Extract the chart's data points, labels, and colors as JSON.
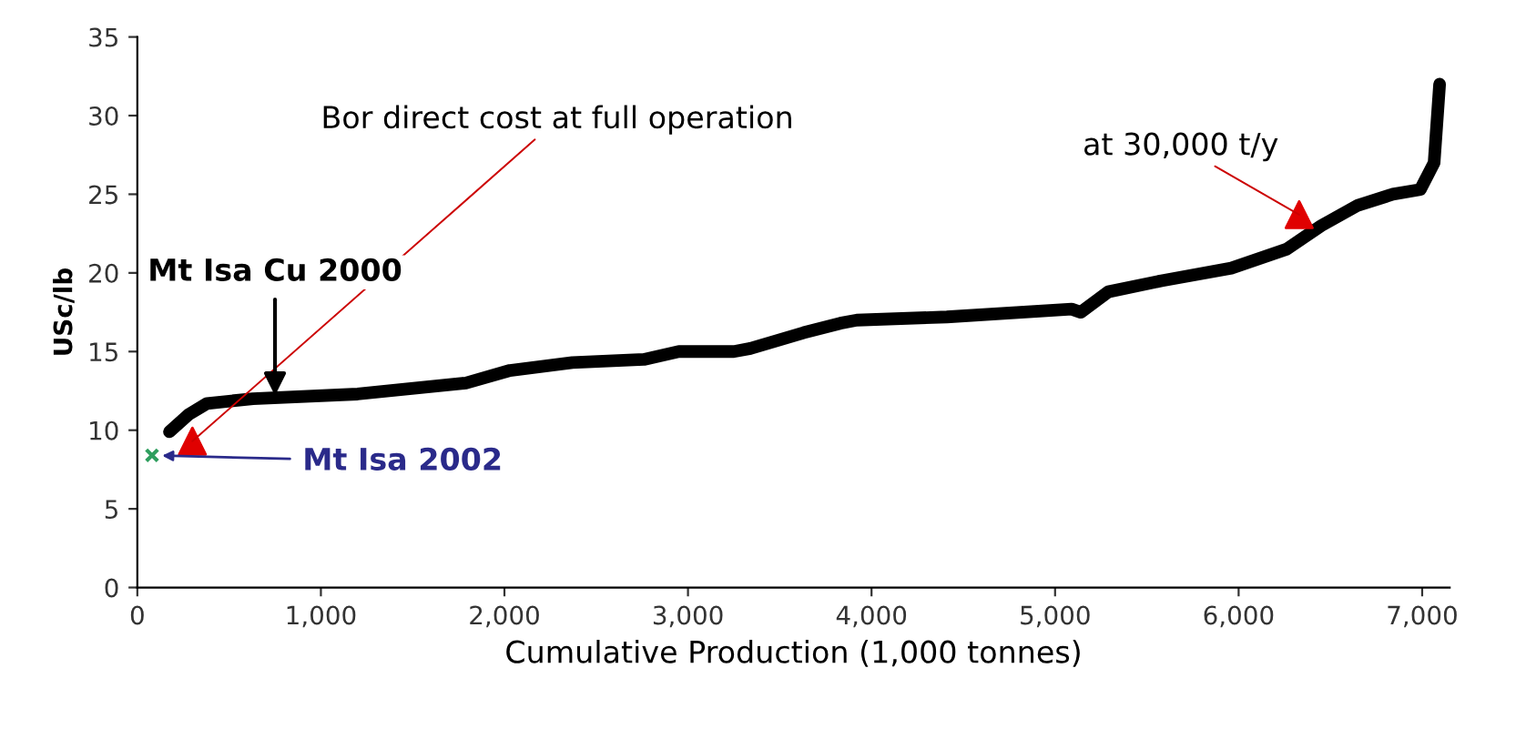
{
  "chart_data": {
    "type": "line",
    "xlabel": "Cumulative Production (1,000 tonnes)",
    "ylabel": "USc/lb",
    "xlim": [
      0,
      7150
    ],
    "ylim": [
      0,
      35
    ],
    "xticks": [
      0,
      {
        "value": 1000,
        "label": "1,000"
      },
      {
        "value": 2000,
        "label": "2,000"
      },
      {
        "value": 3000,
        "label": "3,000"
      },
      {
        "value": 4000,
        "label": "4,000"
      },
      {
        "value": 5000,
        "label": "5,000"
      },
      {
        "value": 6000,
        "label": "6,000"
      },
      {
        "value": 7000,
        "label": "7,000"
      }
    ],
    "yticks": [
      0,
      5,
      10,
      15,
      20,
      25,
      30,
      35
    ],
    "grid": false,
    "legend": false,
    "marker": "none",
    "line_style": "solid",
    "series": [
      {
        "color": "#000000",
        "x": [
          175,
          280,
          380,
          630,
          1200,
          1790,
          2030,
          2370,
          2760,
          2950,
          3250,
          3340,
          3630,
          3830,
          3920,
          4410,
          5090,
          5140,
          5290,
          5580,
          5960,
          6260,
          6450,
          6650,
          6840,
          6990,
          7065,
          7095
        ],
        "values": [
          9.9,
          11.0,
          11.7,
          12.0,
          12.3,
          13.0,
          13.8,
          14.3,
          14.5,
          15.0,
          15.0,
          15.2,
          16.2,
          16.8,
          17.0,
          17.2,
          17.7,
          17.5,
          18.8,
          19.5,
          20.3,
          21.5,
          23.0,
          24.3,
          25.0,
          25.3,
          27.0,
          32.0
        ]
      },
      {
        "type": "scatter",
        "marker": "triangle",
        "color": "#e00000",
        "x": [
          300
        ],
        "values": [
          9.3
        ]
      },
      {
        "type": "scatter",
        "marker": "triangle",
        "color": "#e00000",
        "x": [
          6330
        ],
        "values": [
          23.7
        ]
      },
      {
        "type": "scatter",
        "marker": "cross",
        "color": "#2e9e5e",
        "x": [
          80
        ],
        "values": [
          8.4
        ]
      }
    ],
    "annotations": [
      {
        "text": "Bor direct cost at full operation",
        "x": 300,
        "y": 9.3
      },
      {
        "text": "Mt Isa Cu 2000",
        "x": 750,
        "y": 12.2
      },
      {
        "text": "Mt Isa 2002",
        "x": 80,
        "y": 8.4
      },
      {
        "text": "at 30,000 t/y",
        "x": 6330,
        "y": 23.7
      }
    ]
  }
}
